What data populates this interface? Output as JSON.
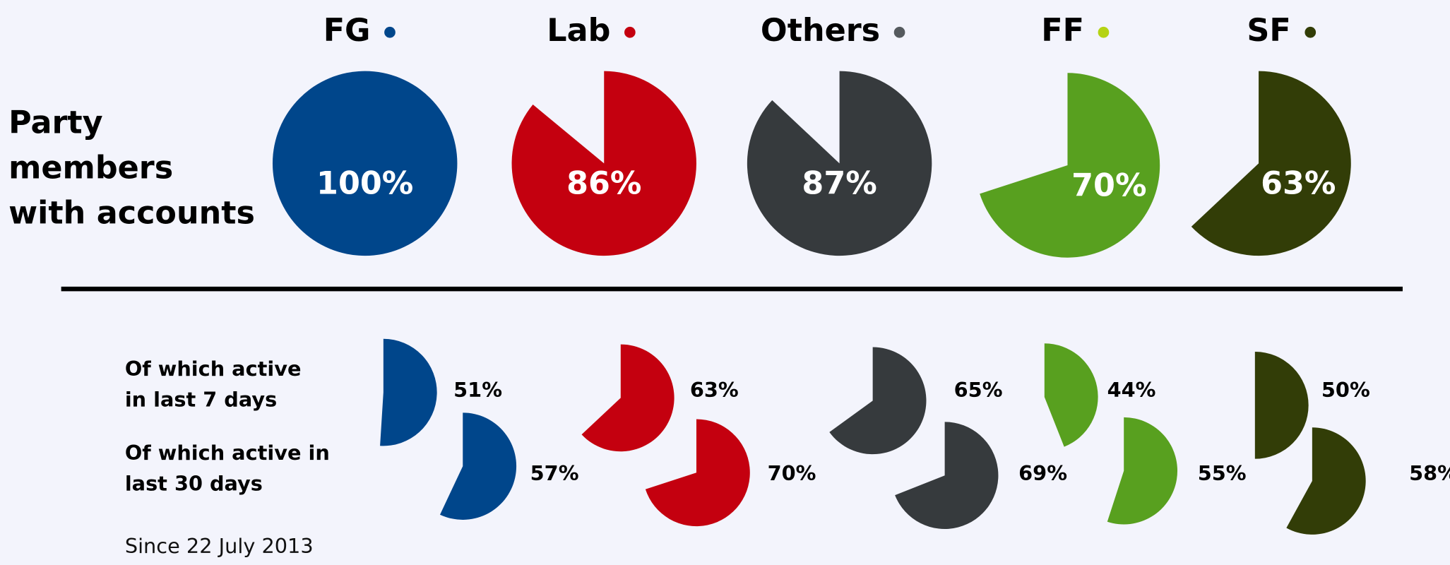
{
  "chart_data": {
    "type": "pie",
    "row_labels": [
      [
        "Party",
        "members",
        "with accounts"
      ],
      [
        "Of which active",
        "in last 7 days"
      ],
      [
        "Of which active in",
        "last 30 days"
      ]
    ],
    "note": "Since 22 July 2013",
    "series": [
      {
        "name": "FG",
        "color": "#00468b",
        "dot_color": "#00468b",
        "values": [
          100,
          51,
          57
        ],
        "value_labels": [
          "100%",
          "51%",
          "57%"
        ]
      },
      {
        "name": "Lab",
        "color": "#c4000f",
        "dot_color": "#c4000f",
        "values": [
          86,
          63,
          70
        ],
        "value_labels": [
          "86%",
          "63%",
          "70%"
        ]
      },
      {
        "name": "Others",
        "color": "#363a3d",
        "dot_color": "#555a5e",
        "values": [
          87,
          65,
          69
        ],
        "value_labels": [
          "87%",
          "65%",
          "69%"
        ]
      },
      {
        "name": "FF",
        "color": "#58a01f",
        "dot_color": "#b5d314",
        "values": [
          70,
          44,
          55
        ],
        "value_labels": [
          "70%",
          "44%",
          "55%"
        ]
      },
      {
        "name": "SF",
        "color": "#323d07",
        "dot_color": "#323d07",
        "values": [
          63,
          50,
          58
        ],
        "value_labels": [
          "63%",
          "50%",
          "58%"
        ]
      }
    ]
  }
}
